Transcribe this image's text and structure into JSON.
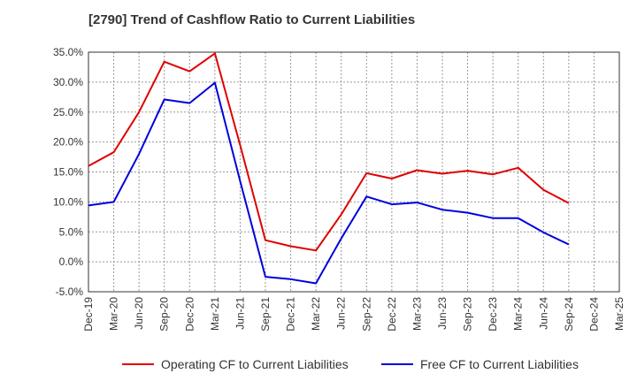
{
  "title": "[2790]  Trend of Cashflow Ratio to Current Liabilities",
  "chart_data": {
    "type": "line",
    "title": "[2790]  Trend of Cashflow Ratio to Current Liabilities",
    "xlabel": "",
    "ylabel": "",
    "categories": [
      "Dec-19",
      "Mar-20",
      "Jun-20",
      "Sep-20",
      "Dec-20",
      "Mar-21",
      "Jun-21",
      "Sep-21",
      "Dec-21",
      "Mar-22",
      "Jun-22",
      "Sep-22",
      "Dec-22",
      "Mar-23",
      "Jun-23",
      "Sep-23",
      "Dec-23",
      "Mar-24",
      "Jun-24",
      "Sep-24",
      "Dec-24",
      "Mar-25"
    ],
    "ylim": [
      -5,
      35
    ],
    "yticks": [
      -5,
      0,
      5,
      10,
      15,
      20,
      25,
      30,
      35
    ],
    "ytick_labels": [
      "-5.0%",
      "0.0%",
      "5.0%",
      "10.0%",
      "15.0%",
      "20.0%",
      "25.0%",
      "30.0%",
      "35.0%"
    ],
    "grid": true,
    "legend_position": "bottom",
    "series": [
      {
        "name": "Operating CF to Current Liabilities",
        "color": "#e00000",
        "values": [
          16.0,
          18.3,
          25.0,
          33.4,
          31.8,
          34.8,
          19.5,
          3.6,
          2.6,
          1.9,
          7.9,
          14.8,
          13.9,
          15.3,
          14.7,
          15.2,
          14.6,
          15.7,
          12.0,
          9.8,
          null,
          null
        ]
      },
      {
        "name": "Free CF to Current Liabilities",
        "color": "#0000dd",
        "values": [
          9.4,
          10.0,
          18.0,
          27.1,
          26.5,
          29.9,
          13.5,
          -2.5,
          -2.9,
          -3.6,
          3.9,
          10.9,
          9.6,
          9.9,
          8.7,
          8.2,
          7.3,
          7.3,
          4.9,
          2.9,
          null,
          null
        ]
      }
    ]
  }
}
